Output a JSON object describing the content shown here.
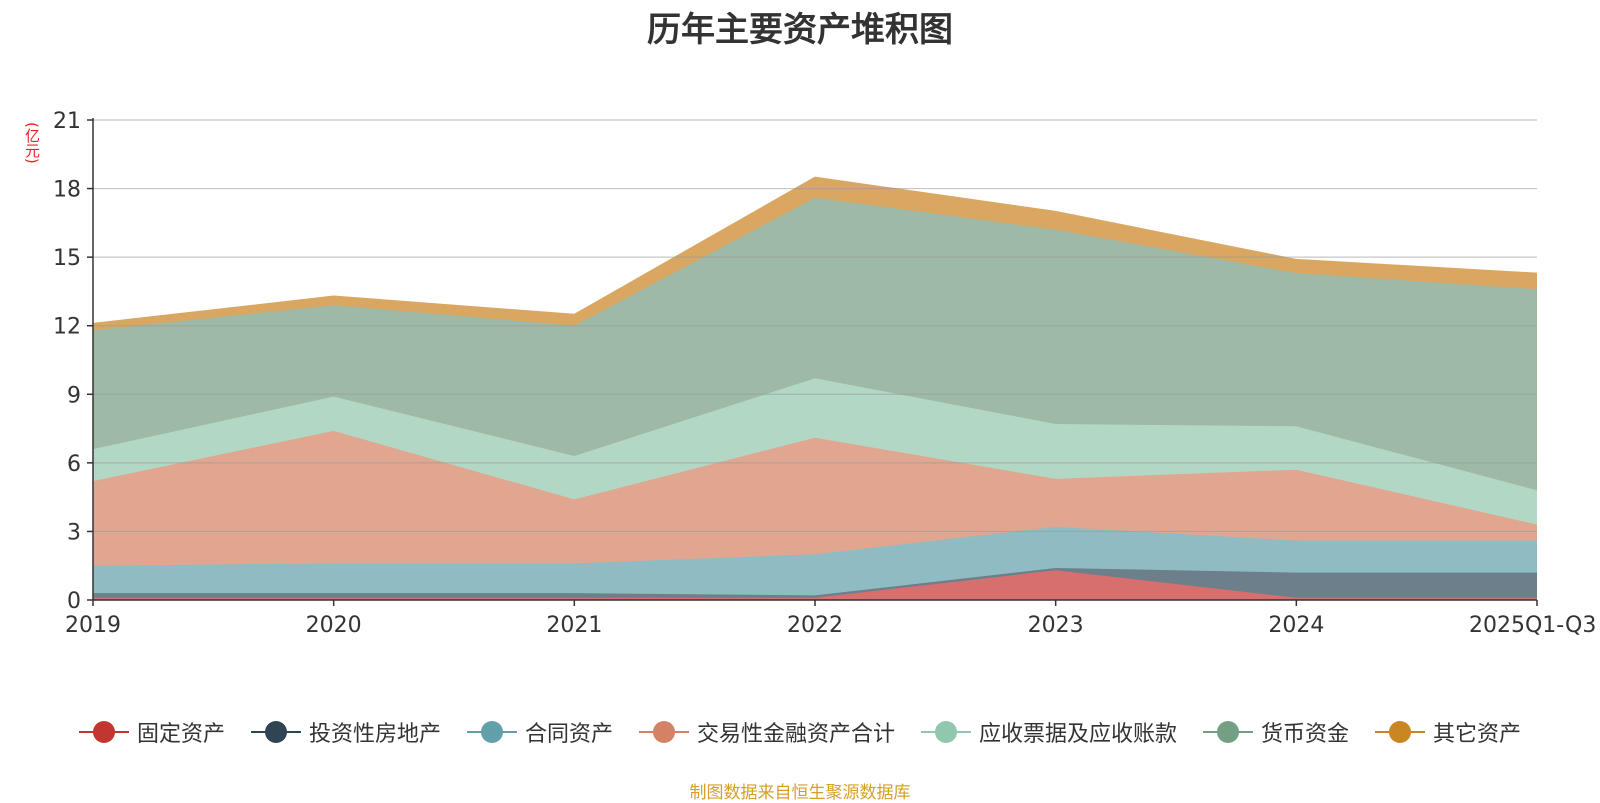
{
  "chart_data": {
    "type": "area",
    "stacked": true,
    "title": "历年主要资产堆积图",
    "unit": "(亿元)",
    "categories": [
      "2019",
      "2020",
      "2021",
      "2022",
      "2023",
      "2024",
      "2025Q1-Q3"
    ],
    "ylim": [
      0,
      21
    ],
    "yticks": [
      0,
      3,
      6,
      9,
      12,
      15,
      18,
      21
    ],
    "grid": true,
    "legend_position": "bottom",
    "series": [
      {
        "name": "固定资产",
        "color": "#c23531",
        "fill": "#d66f6d",
        "values": [
          0.1,
          0.1,
          0.1,
          0.1,
          1.3,
          0.1,
          0.1
        ]
      },
      {
        "name": "投资性房地产",
        "color": "#2f4554",
        "fill": "#6d7f8a",
        "values": [
          0.2,
          0.2,
          0.2,
          0.1,
          0.1,
          1.1,
          1.1
        ]
      },
      {
        "name": "合同资产",
        "color": "#61a0a8",
        "fill": "#8fbcc2",
        "values": [
          1.2,
          1.3,
          1.3,
          1.8,
          1.8,
          1.4,
          1.4
        ]
      },
      {
        "name": "交易性金融资产合计",
        "color": "#d48265",
        "fill": "#e0a690",
        "values": [
          3.7,
          5.8,
          2.8,
          5.1,
          2.1,
          3.1,
          0.7
        ]
      },
      {
        "name": "应收票据及应收账款",
        "color": "#91c7ae",
        "fill": "#b2d8c5",
        "values": [
          1.4,
          1.5,
          1.9,
          2.6,
          2.4,
          1.9,
          1.5
        ]
      },
      {
        "name": "货币资金",
        "color": "#749f83",
        "fill": "#9eb9a6",
        "values": [
          5.2,
          4.0,
          5.7,
          7.9,
          8.5,
          6.7,
          8.8
        ]
      },
      {
        "name": "其它资产",
        "color": "#ca8622",
        "fill": "#d9a761",
        "values": [
          0.3,
          0.4,
          0.5,
          0.9,
          0.8,
          0.6,
          0.7
        ]
      }
    ]
  },
  "source_note": "制图数据来自恒生聚源数据库"
}
